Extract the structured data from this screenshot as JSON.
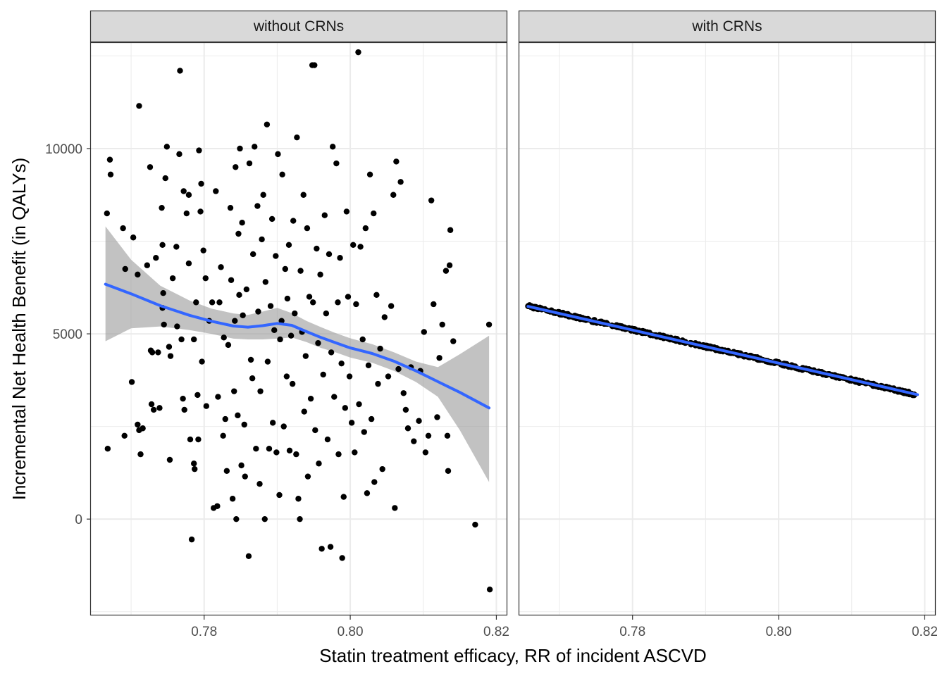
{
  "chart_data": {
    "type": "scatter",
    "title": "",
    "xlabel": "Statin treatment efficacy, RR of incident ASCVD",
    "ylabel": "Incremental Net Health Benefit (in QALYs)",
    "xlim": [
      0.7645,
      0.8215
    ],
    "ylim": [
      -2600,
      12850
    ],
    "x_ticks": [
      0.78,
      0.8,
      0.82
    ],
    "x_tick_labels": [
      "0.78",
      "0.80",
      "0.82"
    ],
    "y_ticks": [
      0,
      5000,
      10000
    ],
    "y_tick_labels": [
      "0",
      "5000",
      "10000"
    ],
    "grid": true,
    "colors": {
      "points": "#000000",
      "smooth_line": "#3366FF",
      "ribbon": "#999999",
      "strip_fill": "#D9D9D9",
      "grid": "#EBEBEB"
    },
    "panels": [
      {
        "strip_label": "without CRNs",
        "points": [
          [
            0.7667,
            8250
          ],
          [
            0.7668,
            1900
          ],
          [
            0.7671,
            9700
          ],
          [
            0.7672,
            9300
          ],
          [
            0.7689,
            7850
          ],
          [
            0.7691,
            2250
          ],
          [
            0.7692,
            6750
          ],
          [
            0.7703,
            7600
          ],
          [
            0.7701,
            3700
          ],
          [
            0.7711,
            11150
          ],
          [
            0.7709,
            6600
          ],
          [
            0.7709,
            2550
          ],
          [
            0.7716,
            2450
          ],
          [
            0.7711,
            2400
          ],
          [
            0.7713,
            1750
          ],
          [
            0.7722,
            6850
          ],
          [
            0.7726,
            9500
          ],
          [
            0.7727,
            4550
          ],
          [
            0.7729,
            4500
          ],
          [
            0.7728,
            3100
          ],
          [
            0.7731,
            2950
          ],
          [
            0.7734,
            7050
          ],
          [
            0.7737,
            4500
          ],
          [
            0.7739,
            3000
          ],
          [
            0.7742,
            8400
          ],
          [
            0.7743,
            7400
          ],
          [
            0.7744,
            6100
          ],
          [
            0.7743,
            5700
          ],
          [
            0.7745,
            5250
          ],
          [
            0.7747,
            9200
          ],
          [
            0.7749,
            10050
          ],
          [
            0.7752,
            4650
          ],
          [
            0.7754,
            4400
          ],
          [
            0.7753,
            1600
          ],
          [
            0.7757,
            6500
          ],
          [
            0.7762,
            7350
          ],
          [
            0.7763,
            5200
          ],
          [
            0.7766,
            9850
          ],
          [
            0.7767,
            12100
          ],
          [
            0.7769,
            4850
          ],
          [
            0.7771,
            3250
          ],
          [
            0.7772,
            8850
          ],
          [
            0.7773,
            2950
          ],
          [
            0.7776,
            8250
          ],
          [
            0.7779,
            8750
          ],
          [
            0.7779,
            6900
          ],
          [
            0.7781,
            2150
          ],
          [
            0.7783,
            -550
          ],
          [
            0.7786,
            1500
          ],
          [
            0.7787,
            1350
          ],
          [
            0.7786,
            4850
          ],
          [
            0.7789,
            5850
          ],
          [
            0.7791,
            3350
          ],
          [
            0.7793,
            9950
          ],
          [
            0.7792,
            2150
          ],
          [
            0.7795,
            8300
          ],
          [
            0.7796,
            9050
          ],
          [
            0.7797,
            4250
          ],
          [
            0.7799,
            7250
          ],
          [
            0.7802,
            6500
          ],
          [
            0.7803,
            3050
          ],
          [
            0.7807,
            5350
          ],
          [
            0.7811,
            5850
          ],
          [
            0.7813,
            300
          ],
          [
            0.7816,
            8850
          ],
          [
            0.7818,
            350
          ],
          [
            0.7819,
            3300
          ],
          [
            0.7821,
            5850
          ],
          [
            0.7823,
            6800
          ],
          [
            0.7826,
            2250
          ],
          [
            0.7827,
            4900
          ],
          [
            0.7829,
            2700
          ],
          [
            0.7831,
            1300
          ],
          [
            0.7833,
            4700
          ],
          [
            0.7836,
            8400
          ],
          [
            0.7837,
            6450
          ],
          [
            0.7839,
            550
          ],
          [
            0.7841,
            3450
          ],
          [
            0.7842,
            5350
          ],
          [
            0.7843,
            9500
          ],
          [
            0.7844,
            0
          ],
          [
            0.7846,
            2800
          ],
          [
            0.7847,
            7700
          ],
          [
            0.7848,
            6050
          ],
          [
            0.7849,
            10000
          ],
          [
            0.7851,
            1450
          ],
          [
            0.7852,
            8000
          ],
          [
            0.7853,
            5500
          ],
          [
            0.7855,
            2550
          ],
          [
            0.7856,
            1150
          ],
          [
            0.7858,
            6200
          ],
          [
            0.7861,
            -1000
          ],
          [
            0.7862,
            9600
          ],
          [
            0.7864,
            4300
          ],
          [
            0.7866,
            3800
          ],
          [
            0.7867,
            7150
          ],
          [
            0.7869,
            10050
          ],
          [
            0.7871,
            1900
          ],
          [
            0.7873,
            8450
          ],
          [
            0.7874,
            5600
          ],
          [
            0.7876,
            950
          ],
          [
            0.7877,
            3450
          ],
          [
            0.7879,
            7550
          ],
          [
            0.7881,
            8750
          ],
          [
            0.7883,
            0
          ],
          [
            0.7884,
            6400
          ],
          [
            0.7886,
            10650
          ],
          [
            0.7887,
            4250
          ],
          [
            0.7889,
            1900
          ],
          [
            0.7891,
            5750
          ],
          [
            0.7893,
            8100
          ],
          [
            0.7894,
            2600
          ],
          [
            0.7896,
            5100
          ],
          [
            0.7898,
            7100
          ],
          [
            0.7899,
            1800
          ],
          [
            0.7901,
            9850
          ],
          [
            0.7903,
            650
          ],
          [
            0.7904,
            4850
          ],
          [
            0.7906,
            5350
          ],
          [
            0.7907,
            9300
          ],
          [
            0.7909,
            2500
          ],
          [
            0.7911,
            6750
          ],
          [
            0.7913,
            3850
          ],
          [
            0.7914,
            5950
          ],
          [
            0.7916,
            7400
          ],
          [
            0.7917,
            1850
          ],
          [
            0.7919,
            4950
          ],
          [
            0.7921,
            3650
          ],
          [
            0.7922,
            8050
          ],
          [
            0.7924,
            5550
          ],
          [
            0.7926,
            1750
          ],
          [
            0.7927,
            10300
          ],
          [
            0.7929,
            550
          ],
          [
            0.7931,
            0
          ],
          [
            0.7932,
            6700
          ],
          [
            0.7934,
            5050
          ],
          [
            0.7936,
            8750
          ],
          [
            0.7937,
            2900
          ],
          [
            0.7939,
            4400
          ],
          [
            0.7941,
            7850
          ],
          [
            0.7942,
            1150
          ],
          [
            0.7944,
            6000
          ],
          [
            0.7946,
            3250
          ],
          [
            0.7948,
            12250
          ],
          [
            0.7951,
            12250
          ],
          [
            0.7949,
            5850
          ],
          [
            0.7952,
            2400
          ],
          [
            0.7954,
            7300
          ],
          [
            0.7956,
            4750
          ],
          [
            0.7957,
            1500
          ],
          [
            0.7959,
            6600
          ],
          [
            0.7961,
            -800
          ],
          [
            0.7963,
            3900
          ],
          [
            0.7965,
            8200
          ],
          [
            0.7967,
            5550
          ],
          [
            0.7969,
            2150
          ],
          [
            0.7971,
            7150
          ],
          [
            0.7973,
            -750
          ],
          [
            0.7974,
            4500
          ],
          [
            0.7976,
            10050
          ],
          [
            0.7978,
            3300
          ],
          [
            0.7981,
            9600
          ],
          [
            0.7983,
            5850
          ],
          [
            0.7984,
            1750
          ],
          [
            0.7986,
            7050
          ],
          [
            0.7988,
            4200
          ],
          [
            0.7989,
            -1050
          ],
          [
            0.7991,
            600
          ],
          [
            0.7993,
            3000
          ],
          [
            0.7995,
            8300
          ],
          [
            0.7997,
            6000
          ],
          [
            0.7999,
            3850
          ],
          [
            0.8002,
            2600
          ],
          [
            0.8004,
            7400
          ],
          [
            0.8006,
            1800
          ],
          [
            0.8008,
            5800
          ],
          [
            0.8011,
            12600
          ],
          [
            0.8012,
            3100
          ],
          [
            0.8014,
            7350
          ],
          [
            0.8017,
            4850
          ],
          [
            0.8019,
            2350
          ],
          [
            0.8021,
            7850
          ],
          [
            0.8023,
            700
          ],
          [
            0.8025,
            4150
          ],
          [
            0.8027,
            9300
          ],
          [
            0.8029,
            2700
          ],
          [
            0.8032,
            8250
          ],
          [
            0.8033,
            1000
          ],
          [
            0.8036,
            6050
          ],
          [
            0.8038,
            3650
          ],
          [
            0.8041,
            4600
          ],
          [
            0.8044,
            1350
          ],
          [
            0.8047,
            5450
          ],
          [
            0.8052,
            3850
          ],
          [
            0.8056,
            5750
          ],
          [
            0.8059,
            8750
          ],
          [
            0.8061,
            300
          ],
          [
            0.8063,
            9650
          ],
          [
            0.8066,
            4050
          ],
          [
            0.8069,
            9100
          ],
          [
            0.8073,
            3400
          ],
          [
            0.8076,
            2950
          ],
          [
            0.8079,
            2450
          ],
          [
            0.8083,
            4100
          ],
          [
            0.8087,
            2100
          ],
          [
            0.8094,
            2650
          ],
          [
            0.8096,
            4000
          ],
          [
            0.8101,
            5050
          ],
          [
            0.8103,
            1800
          ],
          [
            0.8107,
            2250
          ],
          [
            0.8111,
            8600
          ],
          [
            0.8114,
            5800
          ],
          [
            0.8119,
            2750
          ],
          [
            0.8122,
            4350
          ],
          [
            0.8126,
            5250
          ],
          [
            0.8131,
            6700
          ],
          [
            0.8133,
            2250
          ],
          [
            0.8134,
            1300
          ],
          [
            0.8136,
            6850
          ],
          [
            0.8137,
            7800
          ],
          [
            0.8141,
            4800
          ],
          [
            0.8171,
            -150
          ],
          [
            0.819,
            5250
          ],
          [
            0.8191,
            -1900
          ]
        ],
        "smooth_line": [
          [
            0.7665,
            6340
          ],
          [
            0.77,
            6080
          ],
          [
            0.774,
            5760
          ],
          [
            0.778,
            5500
          ],
          [
            0.781,
            5340
          ],
          [
            0.784,
            5210
          ],
          [
            0.786,
            5180
          ],
          [
            0.788,
            5220
          ],
          [
            0.79,
            5280
          ],
          [
            0.792,
            5230
          ],
          [
            0.794,
            5060
          ],
          [
            0.796,
            4900
          ],
          [
            0.798,
            4760
          ],
          [
            0.8,
            4620
          ],
          [
            0.803,
            4470
          ],
          [
            0.806,
            4260
          ],
          [
            0.809,
            4000
          ],
          [
            0.812,
            3710
          ],
          [
            0.815,
            3420
          ],
          [
            0.819,
            3000
          ]
        ],
        "ribbon_upper": [
          [
            0.7665,
            7900
          ],
          [
            0.77,
            7000
          ],
          [
            0.774,
            6300
          ],
          [
            0.778,
            5900
          ],
          [
            0.781,
            5680
          ],
          [
            0.784,
            5550
          ],
          [
            0.786,
            5510
          ],
          [
            0.788,
            5600
          ],
          [
            0.79,
            5700
          ],
          [
            0.792,
            5560
          ],
          [
            0.794,
            5350
          ],
          [
            0.796,
            5180
          ],
          [
            0.798,
            5020
          ],
          [
            0.8,
            4880
          ],
          [
            0.803,
            4720
          ],
          [
            0.806,
            4500
          ],
          [
            0.809,
            4250
          ],
          [
            0.812,
            4100
          ],
          [
            0.815,
            4450
          ],
          [
            0.819,
            4950
          ]
        ],
        "ribbon_lower": [
          [
            0.7665,
            4800
          ],
          [
            0.77,
            5150
          ],
          [
            0.774,
            5200
          ],
          [
            0.778,
            5100
          ],
          [
            0.781,
            5000
          ],
          [
            0.784,
            4870
          ],
          [
            0.786,
            4850
          ],
          [
            0.788,
            4850
          ],
          [
            0.79,
            4870
          ],
          [
            0.792,
            4900
          ],
          [
            0.794,
            4780
          ],
          [
            0.796,
            4620
          ],
          [
            0.798,
            4500
          ],
          [
            0.8,
            4360
          ],
          [
            0.803,
            4220
          ],
          [
            0.806,
            4000
          ],
          [
            0.809,
            3700
          ],
          [
            0.812,
            3300
          ],
          [
            0.815,
            2400
          ],
          [
            0.819,
            1000
          ]
        ]
      },
      {
        "strip_label": "with CRNs",
        "points_range": {
          "x": [
            0.7657,
            0.819
          ],
          "y_at_start": 5750,
          "y_at_end": 3350,
          "n": 500
        },
        "smooth_line": [
          [
            0.7657,
            5740
          ],
          [
            0.819,
            3360
          ]
        ]
      }
    ]
  }
}
